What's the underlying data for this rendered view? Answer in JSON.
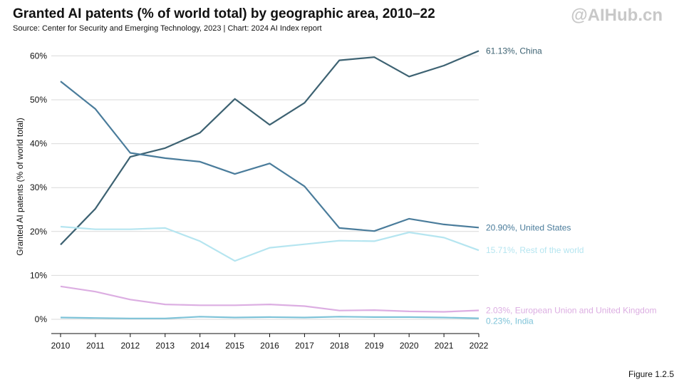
{
  "header": {
    "title": "Granted AI patents (% of world total) by geographic area, 2010–22",
    "source": "Source: Center for Security and Emerging Technology, 2023 | Chart: 2024 AI Index report",
    "watermark": "@AIHub.cn"
  },
  "footer": {
    "figure_label": "Figure 1.2.5"
  },
  "chart_data": {
    "type": "line",
    "title": "Granted AI patents (% of world total) by geographic area, 2010–22",
    "xlabel": "",
    "ylabel": "Granted AI patents (% of world total)",
    "x": [
      2010,
      2011,
      2012,
      2013,
      2014,
      2015,
      2016,
      2017,
      2018,
      2019,
      2020,
      2021,
      2022
    ],
    "ylim": [
      0,
      65
    ],
    "yticks": [
      0,
      10,
      20,
      30,
      40,
      50,
      60
    ],
    "ytick_labels": [
      "0%",
      "10%",
      "20%",
      "30%",
      "40%",
      "50%",
      "60%"
    ],
    "grid": "horizontal",
    "series": [
      {
        "name": "China",
        "end_label": "61.13%, China",
        "color": "#3d6272",
        "values": [
          17.0,
          25.2,
          37.0,
          39.0,
          42.5,
          50.2,
          44.3,
          49.3,
          59.0,
          59.7,
          55.3,
          57.8,
          61.13
        ]
      },
      {
        "name": "United States",
        "end_label": "20.90%, United States",
        "color": "#4a7c9b",
        "values": [
          54.2,
          47.9,
          37.9,
          36.7,
          35.9,
          33.1,
          35.5,
          30.3,
          20.8,
          20.1,
          22.9,
          21.6,
          20.9
        ]
      },
      {
        "name": "Rest of the world",
        "end_label": "15.71%, Rest of the world",
        "color": "#b5e5f0",
        "values": [
          21.1,
          20.5,
          20.5,
          20.8,
          17.8,
          13.3,
          16.3,
          17.1,
          17.9,
          17.8,
          19.8,
          18.6,
          15.71
        ]
      },
      {
        "name": "European Union and United Kingdom",
        "end_label": "2.03%, European Union and United Kingdom",
        "color": "#dcaee2",
        "values": [
          7.5,
          6.3,
          4.5,
          3.4,
          3.2,
          3.2,
          3.4,
          3.0,
          2.0,
          2.1,
          1.8,
          1.7,
          2.03
        ]
      },
      {
        "name": "India",
        "end_label": "0.23%, India",
        "color": "#7ec3d8",
        "values": [
          0.4,
          0.3,
          0.2,
          0.2,
          0.6,
          0.4,
          0.5,
          0.4,
          0.6,
          0.5,
          0.5,
          0.4,
          0.23
        ]
      }
    ]
  }
}
